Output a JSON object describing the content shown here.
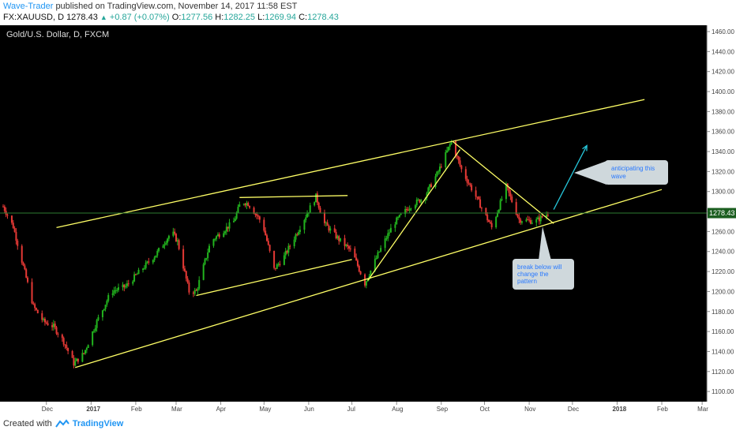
{
  "header": {
    "author": "Wave-Trader",
    "published_text": "published on TradingView.com, November 14, 2017 11:58 EST",
    "symbol_line_prefix": "FX:XAUUSD, D 1278.43",
    "change_arrow": "▲",
    "change": "+0.87 (+0.07%)",
    "open_label": "O:",
    "open": "1277.56",
    "high_label": "H:",
    "high": "1282.25",
    "low_label": "L:",
    "low": "1269.94",
    "close_label": "C:",
    "close": "1278.43"
  },
  "chart_title": "Gold/U.S. Dollar, D, FXCM",
  "last_price_label": "1278.43",
  "annotations": [
    {
      "text_lines": [
        "anticipating this",
        "wave"
      ]
    },
    {
      "text_lines": [
        "break below will",
        "change the",
        "pattern"
      ]
    }
  ],
  "footer": {
    "created_with": "Created with",
    "brand": "TradingView"
  },
  "colors": {
    "background": "#000000",
    "up_candle": "#26a69a",
    "up_candle_green": "#22b41e",
    "down_candle": "#e53935",
    "trendline": "#ffff66",
    "arrow": "#26c6da",
    "last_price_line": "#2e7d32"
  },
  "chart_data": {
    "type": "candlestick",
    "title": "Gold/U.S. Dollar, D, FXCM",
    "x_tick_labels": [
      "Dec",
      "2017",
      "Feb",
      "Mar",
      "Apr",
      "May",
      "Jun",
      "Jul",
      "Aug",
      "Sep",
      "Oct",
      "Nov",
      "Dec",
      "2018",
      "Feb",
      "Mar"
    ],
    "y_tick_labels": [
      "1460.00",
      "1440.00",
      "1420.00",
      "1400.00",
      "1380.00",
      "1360.00",
      "1340.00",
      "1320.00",
      "1300.00",
      "1280.00",
      "1260.00",
      "1240.00",
      "1220.00",
      "1200.00",
      "1180.00",
      "1160.00",
      "1140.00",
      "1120.00",
      "1100.00"
    ],
    "ylim": [
      1100,
      1465
    ],
    "price_path": [
      [
        "2016-11-01",
        1285
      ],
      [
        "2016-11-08",
        1265
      ],
      [
        "2016-11-15",
        1225
      ],
      [
        "2016-11-22",
        1185
      ],
      [
        "2016-11-29",
        1170
      ],
      [
        "2016-12-06",
        1165
      ],
      [
        "2016-12-13",
        1150
      ],
      [
        "2016-12-20",
        1128
      ],
      [
        "2016-12-27",
        1138
      ],
      [
        "2017-01-05",
        1170
      ],
      [
        "2017-01-15",
        1200
      ],
      [
        "2017-01-25",
        1205
      ],
      [
        "2017-02-05",
        1222
      ],
      [
        "2017-02-15",
        1237
      ],
      [
        "2017-02-26",
        1260
      ],
      [
        "2017-03-02",
        1250
      ],
      [
        "2017-03-10",
        1200
      ],
      [
        "2017-03-15",
        1200
      ],
      [
        "2017-03-25",
        1250
      ],
      [
        "2017-04-10",
        1270
      ],
      [
        "2017-04-15",
        1290
      ],
      [
        "2017-04-20",
        1288
      ],
      [
        "2017-04-30",
        1268
      ],
      [
        "2017-05-08",
        1222
      ],
      [
        "2017-05-15",
        1235
      ],
      [
        "2017-05-25",
        1262
      ],
      [
        "2017-06-06",
        1295
      ],
      [
        "2017-06-12",
        1268
      ],
      [
        "2017-06-22",
        1252
      ],
      [
        "2017-07-01",
        1240
      ],
      [
        "2017-07-10",
        1208
      ],
      [
        "2017-07-20",
        1240
      ],
      [
        "2017-07-30",
        1268
      ],
      [
        "2017-08-10",
        1285
      ],
      [
        "2017-08-20",
        1294
      ],
      [
        "2017-08-30",
        1320
      ],
      [
        "2017-09-08",
        1350
      ],
      [
        "2017-09-15",
        1322
      ],
      [
        "2017-09-25",
        1295
      ],
      [
        "2017-10-06",
        1264
      ],
      [
        "2017-10-16",
        1305
      ],
      [
        "2017-10-25",
        1272
      ],
      [
        "2017-11-05",
        1270
      ],
      [
        "2017-11-14",
        1278
      ]
    ],
    "last_price": 1278.43,
    "trendlines": [
      {
        "from": [
          "2016-12-21",
          1124
        ],
        "to": [
          "2018-02-01",
          1302
        ]
      },
      {
        "from": [
          "2016-12-08",
          1264
        ],
        "to": [
          "2018-01-20",
          1392
        ]
      },
      {
        "from": [
          "2017-03-15",
          1196
        ],
        "to": [
          "2017-07-01",
          1232
        ]
      },
      {
        "from": [
          "2017-04-14",
          1294
        ],
        "to": [
          "2017-06-28",
          1296
        ]
      },
      {
        "from": [
          "2017-07-12",
          1211
        ],
        "to": [
          "2017-09-14",
          1342
        ]
      },
      {
        "from": [
          "2017-09-09",
          1350
        ],
        "to": [
          "2017-11-18",
          1268
        ]
      }
    ],
    "projection_arrow": {
      "from": [
        "2017-11-18",
        1282
      ],
      "to": [
        "2017-12-11",
        1346
      ]
    }
  }
}
